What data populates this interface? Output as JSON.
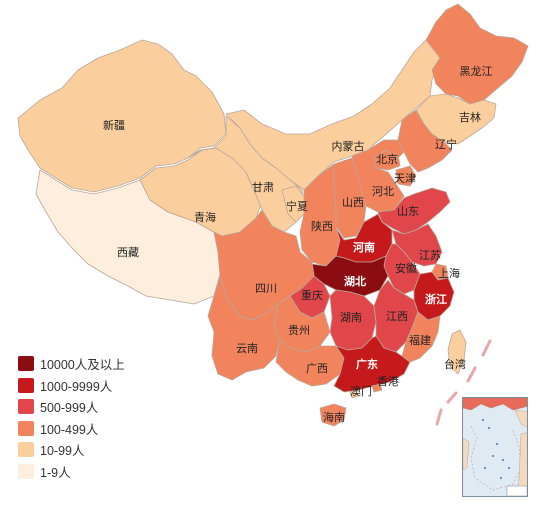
{
  "legend": {
    "items": [
      {
        "label": "10000人及以上",
        "color": "#8b0d12"
      },
      {
        "label": "1000-9999人",
        "color": "#c5191c"
      },
      {
        "label": "500-999人",
        "color": "#e0464a"
      },
      {
        "label": "100-499人",
        "color": "#f2845d"
      },
      {
        "label": "10-99人",
        "color": "#fbcf9d"
      },
      {
        "label": "1-9人",
        "color": "#fdeede"
      }
    ]
  },
  "provinces": [
    {
      "name": "新疆",
      "level": 4
    },
    {
      "name": "西藏",
      "level": 5
    },
    {
      "name": "青海",
      "level": 4
    },
    {
      "name": "甘肃",
      "level": 4
    },
    {
      "name": "宁夏",
      "level": 4
    },
    {
      "name": "内蒙古",
      "level": 4
    },
    {
      "name": "黑龙江",
      "level": 3
    },
    {
      "name": "吉林",
      "level": 4
    },
    {
      "name": "辽宁",
      "level": 3
    },
    {
      "name": "北京",
      "level": 3
    },
    {
      "name": "天津",
      "level": 3
    },
    {
      "name": "河北",
      "level": 3
    },
    {
      "name": "山西",
      "level": 3
    },
    {
      "name": "陕西",
      "level": 3
    },
    {
      "name": "山东",
      "level": 2
    },
    {
      "name": "河南",
      "level": 1
    },
    {
      "name": "江苏",
      "level": 2
    },
    {
      "name": "安徽",
      "level": 2
    },
    {
      "name": "上海",
      "level": 3
    },
    {
      "name": "湖北",
      "level": 0
    },
    {
      "name": "浙江",
      "level": 1
    },
    {
      "name": "四川",
      "level": 3
    },
    {
      "name": "重庆",
      "level": 2
    },
    {
      "name": "湖南",
      "level": 2
    },
    {
      "name": "江西",
      "level": 2
    },
    {
      "name": "福建",
      "level": 3
    },
    {
      "name": "贵州",
      "level": 3
    },
    {
      "name": "云南",
      "level": 3
    },
    {
      "name": "广西",
      "level": 3
    },
    {
      "name": "广东",
      "level": 1
    },
    {
      "name": "澳门",
      "level": 4
    },
    {
      "name": "香港",
      "level": 3
    },
    {
      "name": "台湾",
      "level": 4
    },
    {
      "name": "海南",
      "level": 3
    }
  ],
  "inset": {
    "label": "南海诸岛"
  }
}
